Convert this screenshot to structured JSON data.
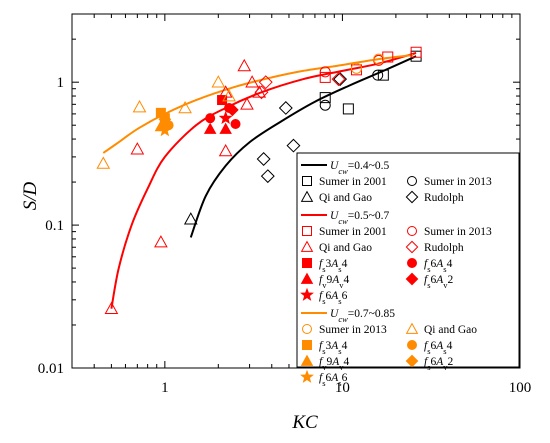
{
  "chart_data": {
    "type": "scatter",
    "xlabel": "KC",
    "ylabel": "S/D",
    "xscale": "log",
    "yscale": "log",
    "xlim": [
      0.3,
      100
    ],
    "ylim": [
      0.01,
      3
    ],
    "x_ticks": [
      {
        "value": 1,
        "label": "1"
      },
      {
        "value": 10,
        "label": "10"
      },
      {
        "value": 100,
        "label": "100"
      }
    ],
    "y_ticks": [
      {
        "value": 0.01,
        "label": "0.01"
      },
      {
        "value": 0.1,
        "label": "0.1"
      },
      {
        "value": 1,
        "label": "1"
      }
    ],
    "legend_position": "lower-right",
    "colors": {
      "black": "#000000",
      "red": "#ff0000",
      "orange": "#ff8c00"
    },
    "groups": [
      {
        "name": "U_cw=0.4~0.5",
        "legend_parts": [
          "U",
          "cw",
          "=0.4~0.5"
        ],
        "color": "#000000",
        "fit_curve": [
          [
            1.4,
            0.082
          ],
          [
            1.7,
            0.16
          ],
          [
            2.2,
            0.26
          ],
          [
            3,
            0.38
          ],
          [
            4.5,
            0.53
          ],
          [
            7,
            0.73
          ],
          [
            11,
            0.95
          ],
          [
            17,
            1.2
          ],
          [
            26,
            1.52
          ]
        ],
        "series": [
          {
            "name": "Sumer in 2001",
            "marker": "square-open",
            "points": [
              [
                8,
                0.78
              ],
              [
                10.8,
                0.65
              ],
              [
                17,
                1.12
              ],
              [
                26,
                1.52
              ]
            ]
          },
          {
            "name": "Sumer in 2013",
            "marker": "circle-open",
            "points": [
              [
                8,
                0.69
              ],
              [
                15.8,
                1.12
              ]
            ]
          },
          {
            "name": "Qi and Gao",
            "marker": "triangle-open",
            "points": [
              [
                1.4,
                0.11
              ]
            ]
          },
          {
            "name": "Rudolph",
            "marker": "diamond-open",
            "points": [
              [
                3.6,
                0.29
              ],
              [
                3.8,
                0.22
              ],
              [
                4.8,
                0.66
              ],
              [
                5.3,
                0.36
              ],
              [
                9.7,
                1.05
              ]
            ]
          }
        ]
      },
      {
        "name": "U_cw=0.5~0.7",
        "legend_parts": [
          "U",
          "cw",
          "=0.5~0.7"
        ],
        "color": "#ff0000",
        "fit_curve": [
          [
            0.5,
            0.026
          ],
          [
            0.55,
            0.05
          ],
          [
            0.65,
            0.1
          ],
          [
            0.8,
            0.18
          ],
          [
            1,
            0.3
          ],
          [
            1.5,
            0.5
          ],
          [
            2.2,
            0.66
          ],
          [
            3.5,
            0.85
          ],
          [
            6,
            1.05
          ],
          [
            10,
            1.2
          ],
          [
            16,
            1.35
          ],
          [
            26,
            1.6
          ]
        ],
        "series": [
          {
            "name": "Sumer in 2001",
            "marker": "square-open",
            "points": [
              [
                8,
                1.08
              ],
              [
                12,
                1.22
              ],
              [
                18,
                1.5
              ],
              [
                26,
                1.62
              ]
            ]
          },
          {
            "name": "Sumer in 2013",
            "marker": "circle-open",
            "points": [
              [
                8,
                1.18
              ],
              [
                16,
                1.42
              ]
            ]
          },
          {
            "name": "Qi and Gao",
            "marker": "triangle-open",
            "points": [
              [
                0.5,
                0.026
              ],
              [
                0.7,
                0.34
              ],
              [
                0.95,
                0.076
              ],
              [
                2.2,
                0.33
              ],
              [
                2.2,
                0.85
              ],
              [
                2.8,
                1.3
              ],
              [
                2.9,
                0.7
              ],
              [
                3.1,
                1.0
              ],
              [
                3.4,
                0.85
              ]
            ]
          },
          {
            "name": "Rudolph",
            "marker": "diamond-open",
            "points": [
              [
                3.5,
                0.85
              ],
              [
                3.7,
                1.0
              ],
              [
                9.5,
                1.05
              ]
            ]
          },
          {
            "name": "f_s3A_s4",
            "label_parts": [
              "f",
              "s",
              "3",
              "A",
              "s",
              "4"
            ],
            "marker": "square-filled",
            "points": [
              [
                2.1,
                0.75
              ]
            ]
          },
          {
            "name": "f_s6A_s4",
            "label_parts": [
              "f",
              "s",
              "6",
              "A",
              "s",
              "4"
            ],
            "marker": "circle-filled",
            "points": [
              [
                1.8,
                0.56
              ],
              [
                2.5,
                0.51
              ],
              [
                2.3,
                0.66
              ]
            ]
          },
          {
            "name": "f_v9A_v4",
            "label_parts": [
              "f",
              "v",
              "9",
              "A",
              "v",
              "4"
            ],
            "marker": "triangle-filled",
            "points": [
              [
                1.8,
                0.47
              ],
              [
                2.2,
                0.47
              ]
            ]
          },
          {
            "name": "f_s6A_v2",
            "label_parts": [
              "f",
              "s",
              "6",
              "A",
              "v",
              "2"
            ],
            "marker": "diamond-filled",
            "points": [
              [
                2.4,
                0.64
              ]
            ]
          },
          {
            "name": "f_s6A_s6",
            "label_parts": [
              "f",
              "s",
              "6",
              "A",
              "s",
              "6"
            ],
            "marker": "star-filled",
            "points": [
              [
                2.2,
                0.56
              ]
            ]
          }
        ]
      },
      {
        "name": "U_cw=0.7~0.85",
        "legend_parts": [
          "U",
          "cw",
          "=0.7~0.85"
        ],
        "color": "#ff8c00",
        "fit_curve": [
          [
            0.45,
            0.32
          ],
          [
            0.55,
            0.38
          ],
          [
            0.7,
            0.47
          ],
          [
            1,
            0.6
          ],
          [
            1.5,
            0.75
          ],
          [
            2.5,
            0.93
          ],
          [
            4,
            1.08
          ],
          [
            6,
            1.2
          ],
          [
            10,
            1.32
          ],
          [
            16,
            1.45
          ],
          [
            25,
            1.55
          ]
        ],
        "series": [
          {
            "name": "Sumer in 2013",
            "marker": "circle-open",
            "points": [
              [
                12,
                1.25
              ],
              [
                16,
                1.45
              ]
            ]
          },
          {
            "name": "Qi and Gao",
            "marker": "triangle-open",
            "points": [
              [
                0.45,
                0.27
              ],
              [
                0.72,
                0.67
              ],
              [
                1.3,
                0.66
              ],
              [
                2.0,
                1.0
              ],
              [
                2.3,
                0.8
              ]
            ]
          },
          {
            "name": "f_s3A_s4",
            "label_parts": [
              "f",
              "s",
              "3",
              "A",
              "s",
              "4"
            ],
            "marker": "square-filled",
            "points": [
              [
                0.95,
                0.61
              ],
              [
                1.0,
                0.56
              ]
            ]
          },
          {
            "name": "f_s6A_s4",
            "label_parts": [
              "f",
              "s",
              "6",
              "A",
              "s",
              "4"
            ],
            "marker": "circle-filled",
            "points": [
              [
                1.0,
                0.5
              ],
              [
                1.05,
                0.5
              ]
            ]
          },
          {
            "name": "f_v9A_v4",
            "label_parts": [
              "f",
              "v",
              "9",
              "A",
              "v",
              "4"
            ],
            "marker": "triangle-filled",
            "points": [
              [
                0.95,
                0.49
              ]
            ]
          },
          {
            "name": "f_s6A_v2",
            "label_parts": [
              "f",
              "s",
              "6",
              "A",
              "v",
              "2"
            ],
            "marker": "diamond-filled",
            "points": [
              [
                1.0,
                0.55
              ]
            ]
          },
          {
            "name": "f_s6A_s6",
            "label_parts": [
              "f",
              "s",
              "6",
              "A",
              "s",
              "6"
            ],
            "marker": "star-filled",
            "points": [
              [
                1.0,
                0.46
              ]
            ]
          }
        ]
      }
    ]
  }
}
